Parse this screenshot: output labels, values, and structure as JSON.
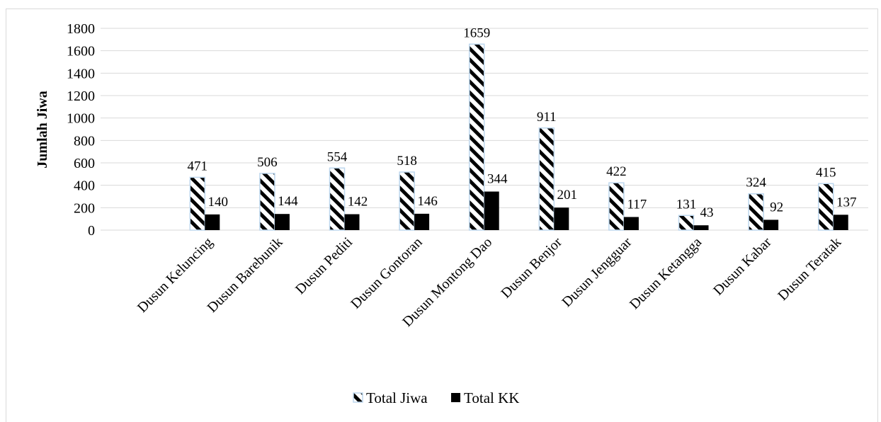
{
  "chart_data": {
    "type": "bar",
    "ylabel": "Jumlah Jiwa",
    "xlabel": "",
    "ylim": [
      0,
      1800
    ],
    "ytick_step": 200,
    "grid": true,
    "legend_position": "bottom",
    "categories": [
      "Dusun Keluncing",
      "Dusun Barebunik",
      "Dusun Pediti",
      "Dusun Gontoran",
      "Dusun Montong Dao",
      "Dusun Benjor",
      "Dusun Jengguar",
      "Dusun Ketangga",
      "Dusun Kabar",
      "Dusun Teratak"
    ],
    "series": [
      {
        "name": "Total Jiwa",
        "values": [
          471,
          506,
          554,
          518,
          1659,
          911,
          422,
          131,
          324,
          415
        ],
        "pattern": "diagonal-hatch",
        "color": "#000000"
      },
      {
        "name": "Total KK",
        "values": [
          140,
          144,
          142,
          146,
          344,
          201,
          117,
          43,
          92,
          137
        ],
        "pattern": "solid",
        "color": "#000000"
      }
    ]
  }
}
